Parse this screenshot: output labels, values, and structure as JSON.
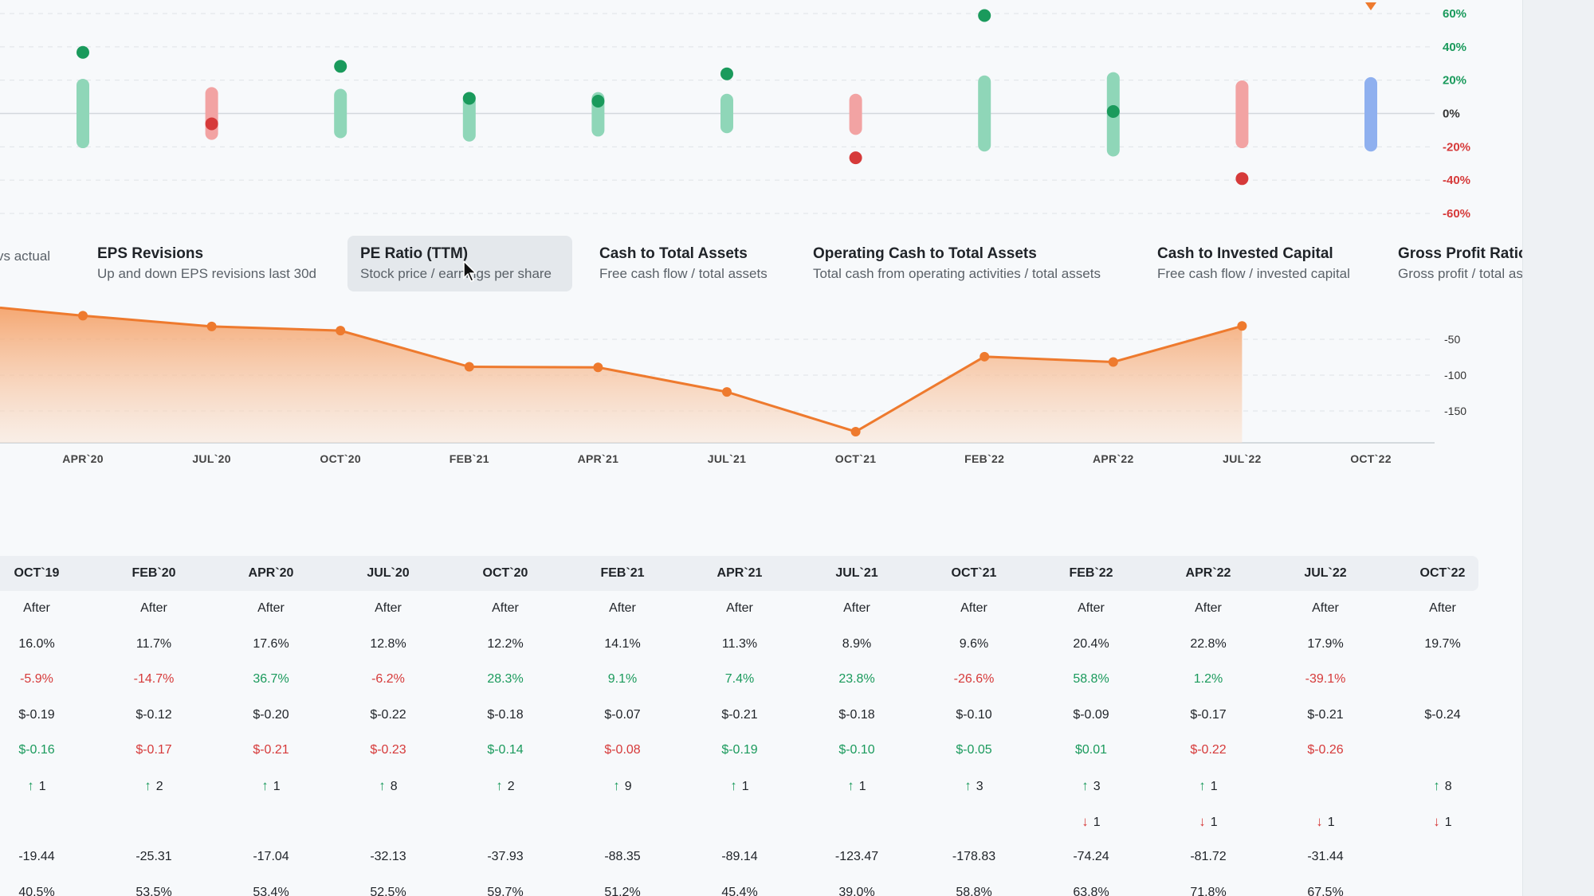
{
  "colors": {
    "green": "#1a9a5c",
    "red": "#d63a3a",
    "orange": "#ee7a2e",
    "blue": "#8fb0ef",
    "bar_green": "#8fd6b8",
    "bar_red": "#f2a3a3"
  },
  "periods": [
    "OCT`19",
    "FEB`20",
    "APR`20",
    "JUL`20",
    "OCT`20",
    "FEB`21",
    "APR`21",
    "JUL`21",
    "OCT`21",
    "FEB`22",
    "APR`22",
    "JUL`22",
    "OCT`22"
  ],
  "chart_data": [
    {
      "type": "scatter",
      "categories": [
        "APR`20",
        "JUL`20",
        "OCT`20",
        "FEB`21",
        "APR`21",
        "JUL`21",
        "OCT`21",
        "FEB`22",
        "APR`22",
        "JUL`22",
        "OCT`22"
      ],
      "y_ticks": [
        "60%",
        "40%",
        "20%",
        "0%",
        "-20%",
        "-40%",
        "-60%"
      ],
      "ylim": [
        -60,
        60
      ],
      "bars": [
        {
          "low": -17,
          "high": 17,
          "color": "green"
        },
        {
          "low": -12,
          "high": 12,
          "color": "red"
        },
        {
          "low": -11,
          "high": 11,
          "color": "green"
        },
        {
          "low": -13,
          "high": 9,
          "color": "green"
        },
        {
          "low": -10,
          "high": 9,
          "color": "green"
        },
        {
          "low": -8,
          "high": 8,
          "color": "green"
        },
        {
          "low": -9,
          "high": 8,
          "color": "red"
        },
        {
          "low": -19,
          "high": 19,
          "color": "green"
        },
        {
          "low": -22,
          "high": 21,
          "color": "green"
        },
        {
          "low": -17,
          "high": 16,
          "color": "red"
        },
        {
          "low": -19,
          "high": 18,
          "color": "blue"
        }
      ],
      "points": [
        {
          "value": 36.7,
          "color": "green"
        },
        {
          "value": -6.2,
          "color": "red"
        },
        {
          "value": 28.3,
          "color": "green"
        },
        {
          "value": 9.1,
          "color": "green"
        },
        {
          "value": 7.4,
          "color": "green"
        },
        {
          "value": 23.8,
          "color": "green"
        },
        {
          "value": -26.6,
          "color": "red"
        },
        {
          "value": 58.8,
          "color": "green"
        },
        {
          "value": 1.2,
          "color": "green"
        },
        {
          "value": -39.1,
          "color": "red"
        },
        {
          "value": null,
          "color": "orange"
        }
      ]
    },
    {
      "type": "area",
      "categories": [
        "APR`20",
        "JUL`20",
        "OCT`20",
        "FEB`21",
        "APR`21",
        "JUL`21",
        "OCT`21",
        "FEB`22",
        "APR`22",
        "JUL`22",
        "OCT`22"
      ],
      "values": [
        -17.04,
        -32.13,
        -37.93,
        -88.35,
        -89.14,
        -123.47,
        -178.83,
        -74.24,
        -81.72,
        -31.44,
        null
      ],
      "y_ticks": [
        "-50",
        "-100",
        "-150"
      ],
      "ylim": [
        -190,
        10
      ]
    }
  ],
  "tabs": [
    {
      "title": "",
      "subtitle": "vs actual"
    },
    {
      "title": "EPS Revisions",
      "subtitle": "Up and down EPS revisions last 30d"
    },
    {
      "title": "PE Ratio (TTM)",
      "subtitle": "Stock price / earnings per share"
    },
    {
      "title": "Cash to Total Assets",
      "subtitle": "Free cash flow / total assets"
    },
    {
      "title": "Operating Cash to Total Assets",
      "subtitle": "Total cash from operating activities / total assets"
    },
    {
      "title": "Cash to Invested Capital",
      "subtitle": "Free cash flow / invested capital"
    },
    {
      "title": "Gross Profit Ratio",
      "subtitle": "Gross profit / total assets"
    }
  ],
  "table": {
    "rows": [
      {
        "type": "text",
        "cells": [
          "After",
          "After",
          "After",
          "After",
          "After",
          "After",
          "After",
          "After",
          "After",
          "After",
          "After",
          "After",
          "After"
        ]
      },
      {
        "type": "text",
        "cells": [
          "16.0%",
          "11.7%",
          "17.6%",
          "12.8%",
          "12.2%",
          "14.1%",
          "11.3%",
          "8.9%",
          "9.6%",
          "20.4%",
          "22.8%",
          "17.9%",
          "19.7%"
        ]
      },
      {
        "type": "signed",
        "cells": [
          "-5.9%",
          "-14.7%",
          "36.7%",
          "-6.2%",
          "28.3%",
          "9.1%",
          "7.4%",
          "23.8%",
          "-26.6%",
          "58.8%",
          "1.2%",
          "-39.1%",
          ""
        ]
      },
      {
        "type": "text",
        "cells": [
          "$-0.19",
          "$-0.12",
          "$-0.20",
          "$-0.22",
          "$-0.18",
          "$-0.07",
          "$-0.21",
          "$-0.18",
          "$-0.10",
          "$-0.09",
          "$-0.17",
          "$-0.21",
          "$-0.24"
        ]
      },
      {
        "type": "colored",
        "cells": [
          {
            "v": "$-0.16",
            "c": "green"
          },
          {
            "v": "$-0.17",
            "c": "red"
          },
          {
            "v": "$-0.21",
            "c": "red"
          },
          {
            "v": "$-0.23",
            "c": "red"
          },
          {
            "v": "$-0.14",
            "c": "green"
          },
          {
            "v": "$-0.08",
            "c": "red"
          },
          {
            "v": "$-0.19",
            "c": "green"
          },
          {
            "v": "$-0.10",
            "c": "green"
          },
          {
            "v": "$-0.05",
            "c": "green"
          },
          {
            "v": "$0.01",
            "c": "green"
          },
          {
            "v": "$-0.22",
            "c": "red"
          },
          {
            "v": "$-0.26",
            "c": "red"
          },
          {
            "v": "",
            "c": ""
          }
        ]
      },
      {
        "type": "up",
        "cells": [
          "1",
          "2",
          "1",
          "8",
          "2",
          "9",
          "1",
          "1",
          "3",
          "3",
          "1",
          "",
          "8"
        ]
      },
      {
        "type": "down",
        "cells": [
          "",
          "",
          "",
          "",
          "",
          "",
          "",
          "",
          "",
          "1",
          "1",
          "1",
          "1"
        ]
      },
      {
        "type": "text",
        "cells": [
          "-19.44",
          "-25.31",
          "-17.04",
          "-32.13",
          "-37.93",
          "-88.35",
          "-89.14",
          "-123.47",
          "-178.83",
          "-74.24",
          "-81.72",
          "-31.44",
          ""
        ]
      },
      {
        "type": "text",
        "cells": [
          "40.5%",
          "53.5%",
          "53.4%",
          "52.5%",
          "59.7%",
          "51.2%",
          "45.4%",
          "39.0%",
          "58.8%",
          "63.8%",
          "71.8%",
          "67.5%",
          ""
        ]
      }
    ]
  }
}
